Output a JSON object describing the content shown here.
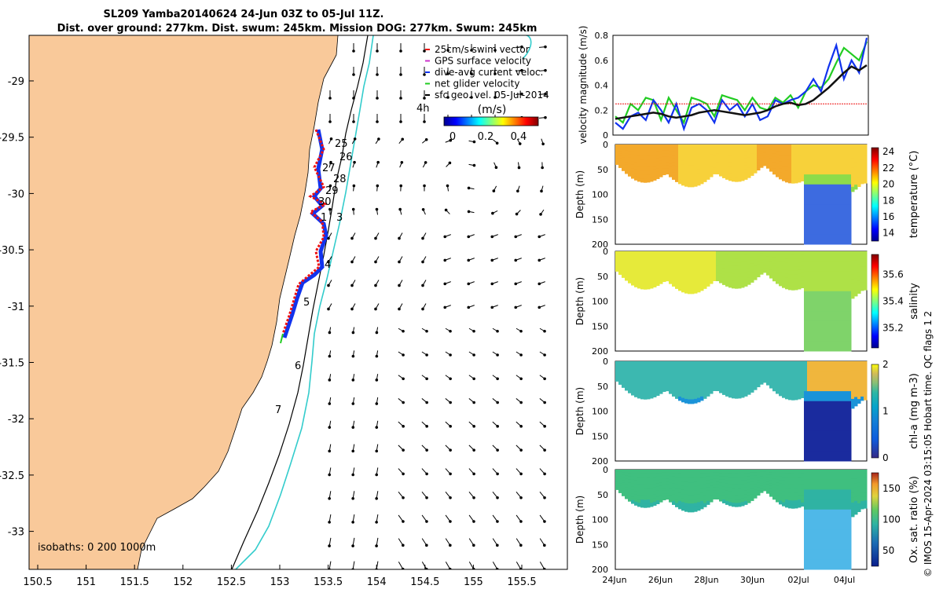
{
  "title": {
    "line1": "SL209 Yamba20140624 24-Jun 03Z to 05-Jul 11Z.",
    "line2": "Dist. over ground: 277km. Dist. swum: 245km. Mission DOG: 277km. Swum: 245km"
  },
  "colors": {
    "land": "#f9c99a",
    "track_red": "#e11",
    "track_blue": "#1133ee",
    "isobath_cyan": "#33cccc"
  },
  "map": {
    "x_ticks": [
      "150.5",
      "151",
      "151.5",
      "152",
      "152.5",
      "153",
      "153.5",
      "154",
      "154.5",
      "155",
      "155.5"
    ],
    "y_ticks": [
      "-29",
      "-29.5",
      "-30",
      "-30.5",
      "-31",
      "-31.5",
      "-32",
      "-32.5",
      "-33"
    ],
    "day_labels": [
      "25",
      "26",
      "27",
      "28",
      "29",
      "30",
      "1",
      "3",
      "4",
      "5",
      "6",
      "7"
    ],
    "time_label": "4h",
    "isobaths_text": "isobaths: 0   200  1000m",
    "legend": [
      {
        "label": "25cm/s swim vector",
        "color": "#e11"
      },
      {
        "label": "GPS surface velocity",
        "color": "#cc33cc"
      },
      {
        "label": "dive-avg current veloc.",
        "color": "#1133ee"
      },
      {
        "label": "net glider velocity",
        "color": "#22cc22"
      },
      {
        "label": "sfc geo. vel. 05-Jul-2014",
        "color": "#000000"
      }
    ],
    "colorbar": {
      "title": "(m/s)",
      "ticks": [
        "0",
        "0.2",
        "0.4"
      ]
    }
  },
  "chart_data": [
    {
      "type": "line",
      "ylabel": "velocity magnitude (m/s)",
      "ylim": [
        0,
        0.8
      ],
      "y_ticks": [
        "0",
        "0.2",
        "0.4",
        "0.6",
        "0.8"
      ],
      "x_ticks": [
        "24Jun",
        "26Jun",
        "28Jun",
        "30Jun",
        "02Jul",
        "04Jul"
      ],
      "series": [
        {
          "color": "#22cc22",
          "values": [
            0.15,
            0.1,
            0.25,
            0.2,
            0.3,
            0.28,
            0.12,
            0.3,
            0.2,
            0.1,
            0.3,
            0.28,
            0.25,
            0.15,
            0.32,
            0.3,
            0.28,
            0.2,
            0.3,
            0.22,
            0.2,
            0.3,
            0.26,
            0.32,
            0.22,
            0.35,
            0.4,
            0.38,
            0.45,
            0.58,
            0.7,
            0.65,
            0.6,
            0.75
          ]
        },
        {
          "color": "#1133ee",
          "values": [
            0.1,
            0.05,
            0.15,
            0.18,
            0.12,
            0.28,
            0.2,
            0.1,
            0.25,
            0.05,
            0.22,
            0.25,
            0.2,
            0.1,
            0.28,
            0.2,
            0.25,
            0.15,
            0.25,
            0.12,
            0.15,
            0.28,
            0.25,
            0.28,
            0.3,
            0.35,
            0.45,
            0.35,
            0.55,
            0.72,
            0.45,
            0.6,
            0.5,
            0.78
          ]
        },
        {
          "color": "#e11",
          "values": [
            0.25,
            0.25,
            0.25,
            0.25,
            0.25,
            0.25,
            0.25,
            0.25,
            0.25,
            0.25,
            0.25,
            0.25,
            0.25,
            0.25,
            0.25,
            0.25,
            0.25,
            0.25,
            0.25,
            0.25,
            0.25,
            0.25,
            0.25,
            0.25,
            0.25,
            0.25,
            0.25,
            0.25,
            0.25,
            0.25,
            0.25,
            0.25,
            0.25,
            0.25
          ]
        },
        {
          "color": "#111111",
          "values": [
            0.13,
            0.14,
            0.15,
            0.16,
            0.17,
            0.18,
            0.17,
            0.15,
            0.14,
            0.15,
            0.16,
            0.18,
            0.19,
            0.2,
            0.19,
            0.18,
            0.17,
            0.16,
            0.17,
            0.18,
            0.2,
            0.23,
            0.25,
            0.26,
            0.24,
            0.25,
            0.28,
            0.33,
            0.38,
            0.44,
            0.5,
            0.55,
            0.52,
            0.56
          ]
        }
      ]
    },
    {
      "type": "heatmap",
      "ylabel": "Depth (m)",
      "clabel": "temperature (°C)",
      "c_ticks": [
        "14",
        "16",
        "18",
        "20",
        "22",
        "24"
      ],
      "clim": [
        13,
        24.5
      ],
      "y_ticks": [
        "0",
        "50",
        "100",
        "150",
        "200"
      ]
    },
    {
      "type": "heatmap",
      "ylabel": "Depth (m)",
      "clabel": "salinity",
      "c_ticks": [
        "35.2",
        "35.4",
        "35.6"
      ],
      "clim": [
        35.05,
        35.75
      ],
      "y_ticks": [
        "0",
        "50",
        "100",
        "150",
        "200"
      ]
    },
    {
      "type": "heatmap",
      "ylabel": "Depth (m)",
      "clabel": "chl-a (mg m-3)",
      "c_ticks": [
        "0",
        "1",
        "2"
      ],
      "clim": [
        0,
        2
      ],
      "y_ticks": [
        "0",
        "50",
        "100",
        "150",
        "200"
      ]
    },
    {
      "type": "heatmap",
      "ylabel": "Depth (m)",
      "clabel": "Ox. sat. ratio (%)",
      "c_ticks": [
        "50",
        "100",
        "150"
      ],
      "clim": [
        25,
        175
      ],
      "y_ticks": [
        "0",
        "50",
        "100",
        "150",
        "200"
      ]
    }
  ],
  "side_note": "© IMOS 15-Apr-2024 03:15:05 Hobart time. QC flags 1  2"
}
